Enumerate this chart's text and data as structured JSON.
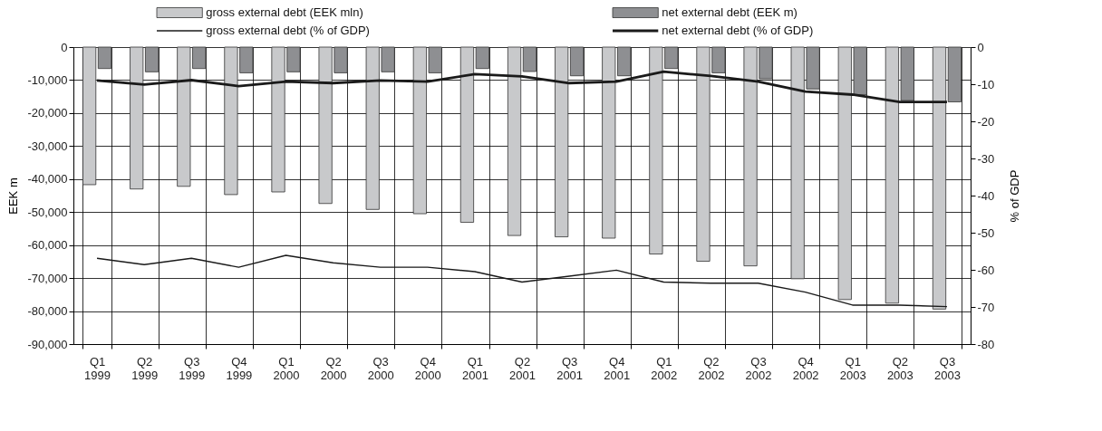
{
  "chart_data": {
    "type": "bar",
    "categories": [
      "Q1 1999",
      "Q2 1999",
      "Q3 1999",
      "Q4 1999",
      "Q1 2000",
      "Q2 2000",
      "Q3 2000",
      "Q4 2000",
      "Q1 2001",
      "Q2 2001",
      "Q3 2001",
      "Q4 2001",
      "Q1 2002",
      "Q2 2002",
      "Q3 2002",
      "Q4 2002",
      "Q1 2003",
      "Q2 2003",
      "Q3 2003"
    ],
    "series": [
      {
        "name": "gross external debt (EEK mln)",
        "type": "bar",
        "color": "#c8c9cb",
        "values": [
          -41700,
          -43000,
          -42200,
          -44700,
          -43900,
          -47400,
          -49200,
          -50500,
          -53100,
          -57100,
          -57500,
          -57900,
          -62700,
          -64900,
          -66300,
          -70200,
          -76500,
          -77600,
          -79400
        ]
      },
      {
        "name": "net external debt (EEK m)",
        "type": "bar",
        "color": "#8e8f92",
        "values": [
          -6500,
          -7500,
          -6500,
          -7800,
          -7500,
          -7800,
          -7500,
          -7800,
          -6500,
          -7400,
          -8700,
          -8700,
          -6500,
          -7800,
          -9600,
          -12700,
          -14400,
          -16200,
          -16600
        ]
      },
      {
        "name": "gross external debt (% of GDP)",
        "type": "line",
        "axis": "y2",
        "color": "#1a1a1a",
        "values": [
          -56.9,
          -58.6,
          -56.9,
          -59.3,
          -56.1,
          -58.1,
          -59.3,
          -59.3,
          -60.5,
          -63.3,
          -61.7,
          -60.1,
          -63.3,
          -63.6,
          -63.6,
          -66.0,
          -69.5,
          -69.5,
          -69.9
        ]
      },
      {
        "name": "net external debt (% of GDP)",
        "type": "line",
        "axis": "y2",
        "color": "#1a1a1a",
        "values": [
          -9.0,
          -10.1,
          -8.9,
          -10.5,
          -9.3,
          -9.7,
          -9.0,
          -9.3,
          -7.3,
          -7.9,
          -9.7,
          -9.3,
          -6.6,
          -7.8,
          -9.3,
          -12.0,
          -12.8,
          -14.8,
          -14.8
        ]
      }
    ],
    "ylabel": "EEK m",
    "y2label": "% of GDP",
    "ylim": [
      -90000,
      0
    ],
    "yticks": [
      {
        "value": -90000,
        "label": "-90,000"
      },
      {
        "value": -80000,
        "label": "-80,000"
      },
      {
        "value": -70000,
        "label": "-70,000"
      },
      {
        "value": -60000,
        "label": "-60,000"
      },
      {
        "value": -50000,
        "label": "-50,000"
      },
      {
        "value": -40000,
        "label": "-40,000"
      },
      {
        "value": -30000,
        "label": "-30,000"
      },
      {
        "value": -20000,
        "label": "-20,000"
      },
      {
        "value": -10000,
        "label": "-10,000"
      },
      0
    ],
    "y2lim": [
      -80,
      0
    ],
    "y2ticks": [
      -80,
      -70,
      -60,
      -50,
      -40,
      -30,
      -20,
      -10,
      0
    ],
    "grid": true,
    "legend": "top",
    "marker": "none",
    "line_style": "solid"
  }
}
